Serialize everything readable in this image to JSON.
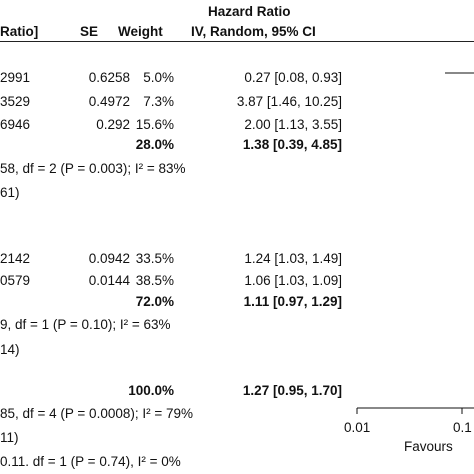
{
  "header": {
    "effect_title": "Hazard Ratio",
    "col_ratio": "Ratio]",
    "col_se": "SE",
    "col_weight": "Weight",
    "col_method": "IV, Random, 95% CI"
  },
  "groups": [
    {
      "rows": [
        {
          "ratio": "2991",
          "se": "0.6258",
          "weight": "5.0%",
          "ci": "0.27 [0.08, 0.93]"
        },
        {
          "ratio": "3529",
          "se": "0.4972",
          "weight": "7.3%",
          "ci": "3.87 [1.46, 10.25]"
        },
        {
          "ratio": "6946",
          "se": "0.292",
          "weight": "15.6%",
          "ci": "2.00 [1.13, 3.55]"
        }
      ],
      "subtotal": {
        "weight": "28.0%",
        "ci": "1.38 [0.39, 4.85]"
      },
      "heterogeneity": "58, df = 2 (P = 0.003); I² = 83%",
      "effect_test": "61)"
    },
    {
      "rows": [
        {
          "ratio": "2142",
          "se": "0.0942",
          "weight": "33.5%",
          "ci": "1.24 [1.03, 1.49]"
        },
        {
          "ratio": "0579",
          "se": "0.0144",
          "weight": "38.5%",
          "ci": "1.06 [1.03, 1.09]"
        }
      ],
      "subtotal": {
        "weight": "72.0%",
        "ci": "1.11 [0.97, 1.29]"
      },
      "heterogeneity": "9, df = 1 (P = 0.10); I² = 63%",
      "effect_test": "14)"
    }
  ],
  "total": {
    "weight": "100.0%",
    "ci": "1.27 [0.95, 1.70]",
    "heterogeneity": "85, df = 4 (P = 0.0008); I² = 79%",
    "effect_test": "11)",
    "subgroup_test": "0.11. df = 1 (P = 0.74), I² = 0%"
  },
  "axis": {
    "ticks": [
      "0.01",
      "0.1"
    ],
    "favours": "Favours"
  },
  "chart_data": {
    "type": "forest",
    "effect_measure": "Hazard Ratio",
    "method": "IV, Random, 95% CI",
    "x_scale": "log",
    "x_ticks": [
      0.01,
      0.1
    ],
    "studies": [
      {
        "se": 0.6258,
        "weight": 5.0,
        "hr": 0.27,
        "lower": 0.08,
        "upper": 0.93
      },
      {
        "se": 0.4972,
        "weight": 7.3,
        "hr": 3.87,
        "lower": 1.46,
        "upper": 10.25
      },
      {
        "se": 0.292,
        "weight": 15.6,
        "hr": 2.0,
        "lower": 1.13,
        "upper": 3.55
      },
      {
        "se": 0.0942,
        "weight": 33.5,
        "hr": 1.24,
        "lower": 1.03,
        "upper": 1.49
      },
      {
        "se": 0.0144,
        "weight": 38.5,
        "hr": 1.06,
        "lower": 1.03,
        "upper": 1.09
      }
    ],
    "subtotals": [
      {
        "weight": 28.0,
        "hr": 1.38,
        "lower": 0.39,
        "upper": 4.85
      },
      {
        "weight": 72.0,
        "hr": 1.11,
        "lower": 0.97,
        "upper": 1.29
      }
    ],
    "overall": {
      "weight": 100.0,
      "hr": 1.27,
      "lower": 0.95,
      "upper": 1.7
    }
  }
}
